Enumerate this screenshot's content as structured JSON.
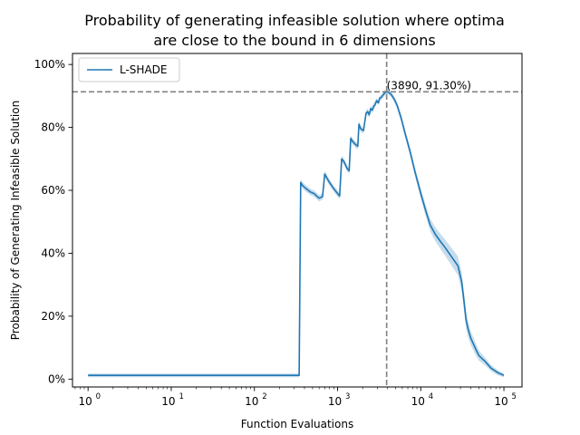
{
  "chart_data": {
    "type": "line",
    "title_lines": [
      "Probability of generating infeasible solution where optima",
      "are close to the bound in 6 dimensions"
    ],
    "xlabel": "Function Evaluations",
    "ylabel": "Probability of Generating Infeasible Solution",
    "x_scale": "log",
    "xlim": [
      0.65,
      165000
    ],
    "ylim": [
      -0.025,
      1.035
    ],
    "x_ticks": [
      {
        "value": 1,
        "base": "10",
        "exp": "0"
      },
      {
        "value": 10,
        "base": "10",
        "exp": "1"
      },
      {
        "value": 100,
        "base": "10",
        "exp": "2"
      },
      {
        "value": 1000,
        "base": "10",
        "exp": "3"
      },
      {
        "value": 10000,
        "base": "10",
        "exp": "4"
      },
      {
        "value": 100000,
        "base": "10",
        "exp": "5"
      }
    ],
    "y_ticks": [
      {
        "value": 0.0,
        "label": "0%"
      },
      {
        "value": 0.2,
        "label": "20%"
      },
      {
        "value": 0.4,
        "label": "40%"
      },
      {
        "value": 0.6,
        "label": "60%"
      },
      {
        "value": 0.8,
        "label": "80%"
      },
      {
        "value": 1.0,
        "label": "100%"
      }
    ],
    "grid": false,
    "legend_position": "top-left",
    "series": [
      {
        "name": "L-SHADE",
        "color": "#1f77b4",
        "band_color": "#1f77b4",
        "x": [
          1,
          10,
          100,
          345,
          360,
          380,
          420,
          470,
          520,
          560,
          600,
          660,
          700,
          740,
          800,
          900,
          1000,
          1060,
          1120,
          1200,
          1300,
          1380,
          1440,
          1520,
          1650,
          1750,
          1810,
          1900,
          2050,
          2200,
          2300,
          2400,
          2500,
          2620,
          2720,
          2800,
          2950,
          3100,
          3200,
          3350,
          3500,
          3700,
          3890,
          4100,
          4400,
          4800,
          5200,
          5800,
          6500,
          7500,
          8500,
          10000,
          11500,
          13000,
          15000,
          17000,
          20000,
          24000,
          28000,
          31000,
          33000,
          35000,
          37000,
          40000,
          45000,
          50000,
          60000,
          70000,
          85000,
          100000
        ],
        "y": [
          0.012,
          0.012,
          0.012,
          0.012,
          0.625,
          0.615,
          0.605,
          0.595,
          0.59,
          0.582,
          0.575,
          0.58,
          0.652,
          0.64,
          0.625,
          0.605,
          0.59,
          0.582,
          0.7,
          0.69,
          0.67,
          0.662,
          0.765,
          0.755,
          0.745,
          0.74,
          0.81,
          0.795,
          0.79,
          0.845,
          0.85,
          0.84,
          0.86,
          0.855,
          0.868,
          0.87,
          0.885,
          0.878,
          0.893,
          0.895,
          0.902,
          0.91,
          0.913,
          0.912,
          0.905,
          0.89,
          0.87,
          0.83,
          0.78,
          0.72,
          0.66,
          0.59,
          0.535,
          0.49,
          0.46,
          0.44,
          0.415,
          0.385,
          0.36,
          0.31,
          0.25,
          0.19,
          0.16,
          0.13,
          0.1,
          0.075,
          0.055,
          0.035,
          0.02,
          0.012
        ],
        "band_halfwidth": [
          0.006,
          0.006,
          0.006,
          0.006,
          0.01,
          0.01,
          0.01,
          0.01,
          0.01,
          0.01,
          0.01,
          0.01,
          0.01,
          0.01,
          0.01,
          0.01,
          0.01,
          0.01,
          0.01,
          0.01,
          0.01,
          0.01,
          0.01,
          0.01,
          0.01,
          0.01,
          0.01,
          0.01,
          0.01,
          0.01,
          0.01,
          0.01,
          0.01,
          0.01,
          0.01,
          0.01,
          0.008,
          0.008,
          0.008,
          0.008,
          0.008,
          0.008,
          0.008,
          0.008,
          0.008,
          0.01,
          0.01,
          0.012,
          0.012,
          0.014,
          0.014,
          0.016,
          0.018,
          0.02,
          0.022,
          0.024,
          0.026,
          0.028,
          0.03,
          0.03,
          0.03,
          0.028,
          0.026,
          0.022,
          0.02,
          0.016,
          0.012,
          0.01,
          0.008,
          0.006
        ]
      }
    ],
    "reference_lines": {
      "vertical_x": 3890,
      "horizontal_y": 0.913,
      "color": "#808080",
      "style": "dashed"
    },
    "annotation": {
      "text": "(3890, 91.30%)",
      "x": 3890,
      "y": 0.913
    }
  }
}
